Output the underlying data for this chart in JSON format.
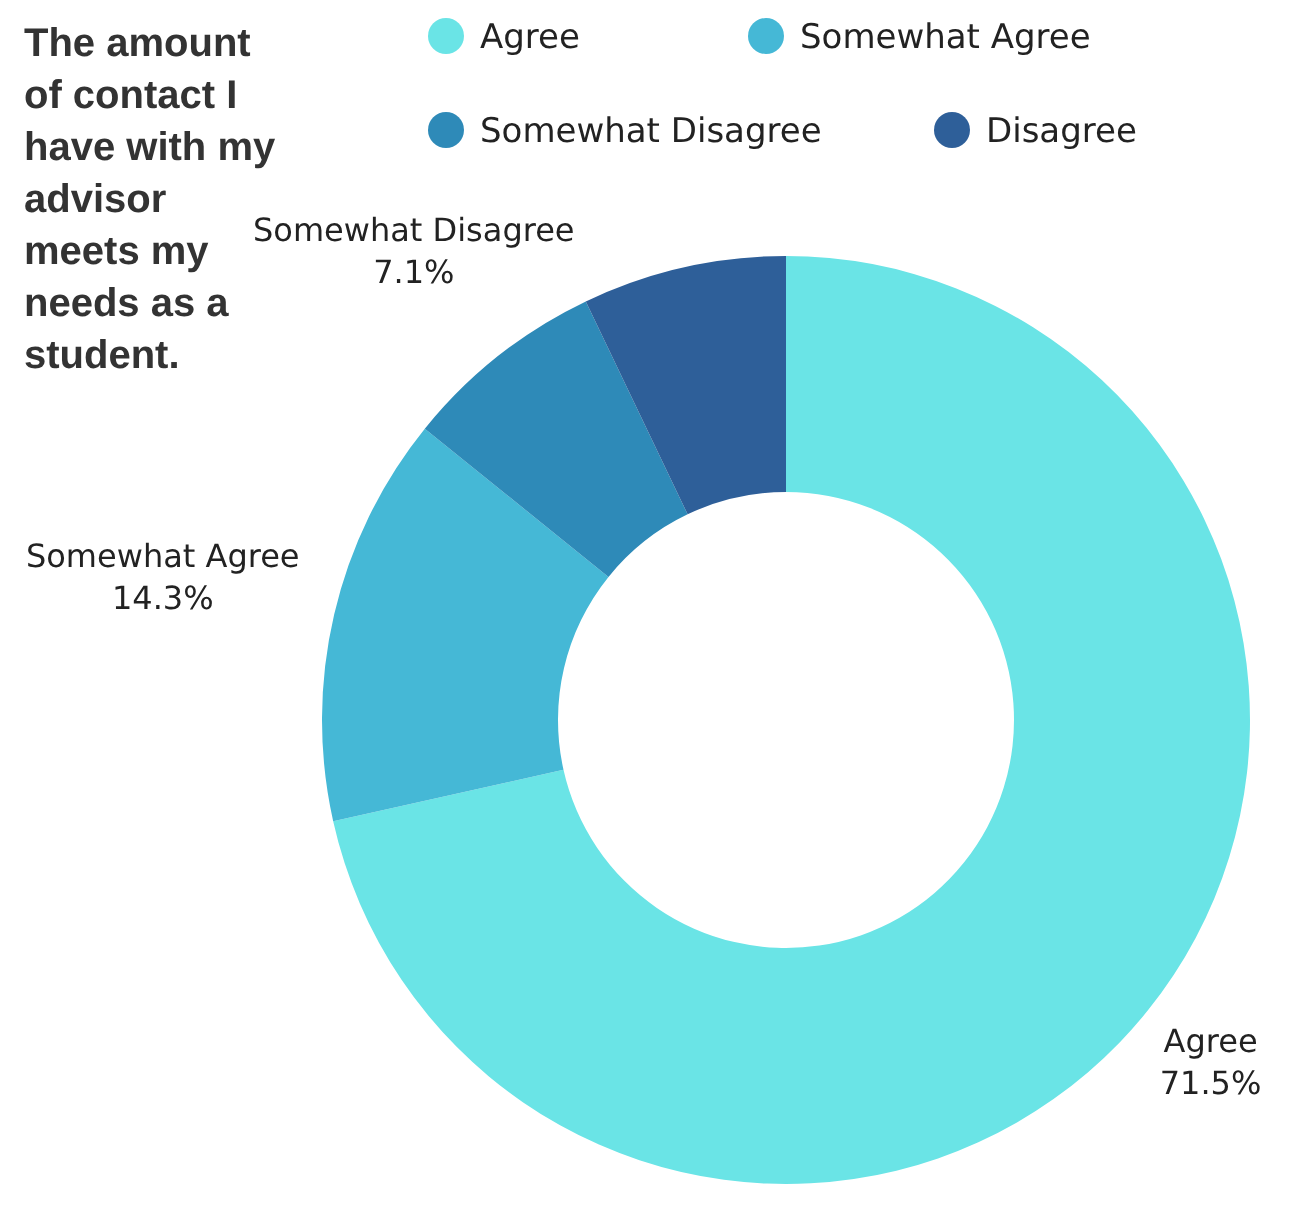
{
  "chart_data": {
    "type": "donut",
    "title": "The amount of contact I have with my advisor meets my needs as a student.",
    "categories": [
      "Agree",
      "Somewhat Agree",
      "Somewhat Disagree",
      "Disagree"
    ],
    "values": [
      71.5,
      14.3,
      7.1,
      7.1
    ],
    "colors": [
      "#6ae4e6",
      "#45b8d6",
      "#2e8ab8",
      "#2e5f99"
    ],
    "value_labels": [
      "71.5%",
      "14.3%",
      "7.1%",
      null
    ],
    "legend": "top right"
  }
}
